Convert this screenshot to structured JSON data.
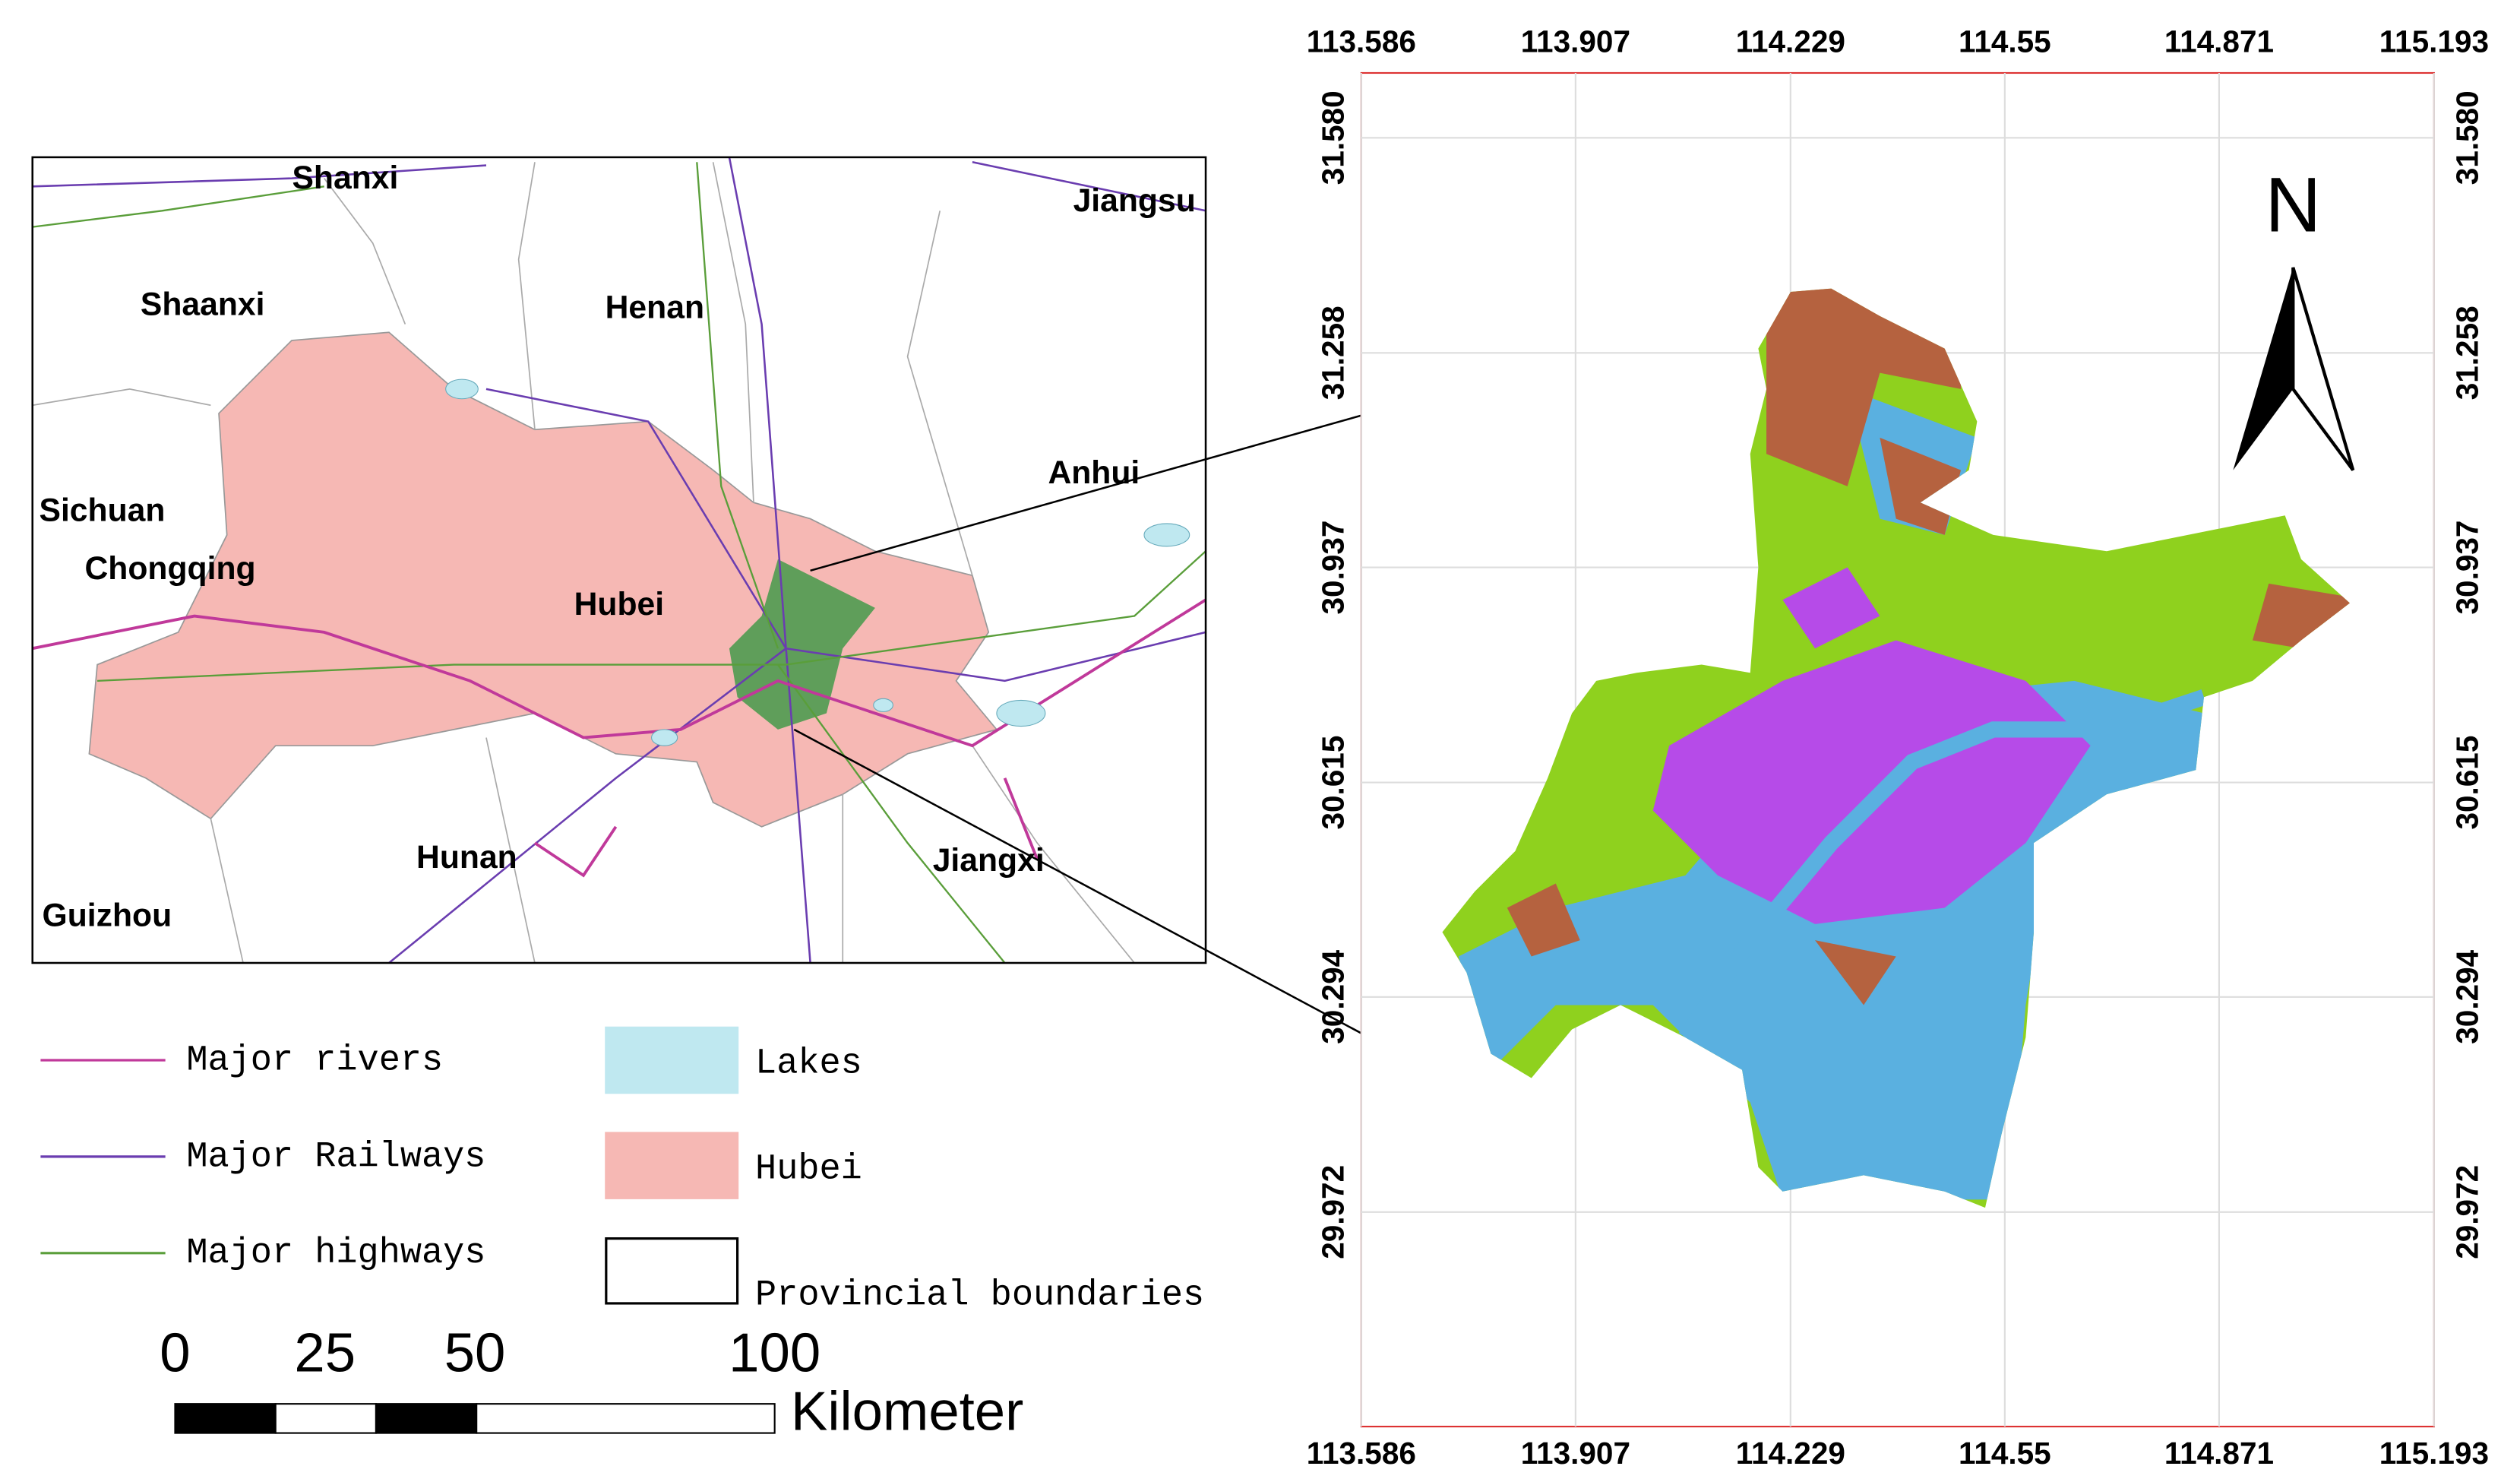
{
  "left_map": {
    "labels": [
      "Shanxi",
      "Jiangsu",
      "Shaanxi",
      "Henan",
      "Anhui",
      "Sichuan",
      "Chongqing",
      "Hubei",
      "Hunan",
      "Jiangxi",
      "Guizhou"
    ]
  },
  "legend": {
    "lines": [
      {
        "label": "Major rivers",
        "color": "#c0399a"
      },
      {
        "label": "Major Railways",
        "color": "#6a3db0"
      },
      {
        "label": "Major highways",
        "color": "#5a9e3a"
      }
    ],
    "areas": [
      {
        "label": "Lakes",
        "color": "#bfe8f0"
      },
      {
        "label": "Hubei",
        "color": "#f6b8b4"
      },
      {
        "label": "Provincial boundaries",
        "color": "#ffffff"
      }
    ]
  },
  "scale_bar": {
    "ticks": [
      0,
      25,
      50,
      100
    ],
    "unit": "Kilometer"
  },
  "right_map": {
    "north": "N",
    "xlim": [
      113.586,
      115.193
    ],
    "xticks": [
      113.586,
      113.907,
      114.229,
      114.55,
      114.871,
      115.193
    ],
    "ylim": [
      29.651,
      31.677
    ],
    "yticks": [
      29.972,
      30.294,
      30.615,
      30.937,
      31.258,
      {
        "value": 31.58,
        "label": "31.580"
      }
    ]
  }
}
